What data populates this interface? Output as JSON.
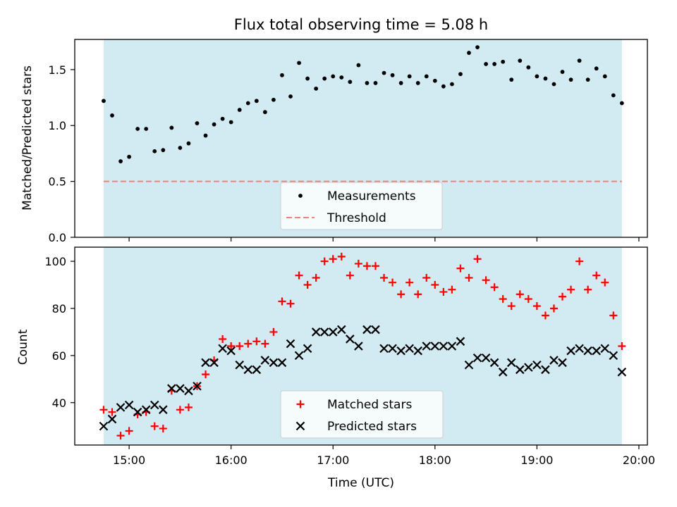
{
  "chart_data": [
    {
      "type": "scatter",
      "title": "Flux total observing time = 5.08 h",
      "ylabel": "Matched/Predicted stars",
      "ylim": [
        0,
        1.77
      ],
      "yticks": [
        "0.0",
        "0.5",
        "1.0",
        "1.5"
      ],
      "ytick_values": [
        0,
        0.5,
        1.0,
        1.5
      ],
      "shaded_span": [
        "14:45",
        "19:50"
      ],
      "shade_color": "#add8e6",
      "legend_position": "lower center",
      "threshold": {
        "name": "Threshold",
        "y": 0.5,
        "color": "#f08080",
        "style": "dashed"
      },
      "series": [
        {
          "name": "Measurements",
          "marker": "dot",
          "color": "#000000",
          "points": [
            [
              "14:45",
              1.22
            ],
            [
              "14:50",
              1.09
            ],
            [
              "14:55",
              0.68
            ],
            [
              "15:00",
              0.72
            ],
            [
              "15:05",
              0.97
            ],
            [
              "15:10",
              0.97
            ],
            [
              "15:15",
              0.77
            ],
            [
              "15:20",
              0.78
            ],
            [
              "15:25",
              0.98
            ],
            [
              "15:30",
              0.8
            ],
            [
              "15:35",
              0.84
            ],
            [
              "15:40",
              1.02
            ],
            [
              "15:45",
              0.91
            ],
            [
              "15:50",
              1.01
            ],
            [
              "15:55",
              1.06
            ],
            [
              "16:00",
              1.03
            ],
            [
              "16:05",
              1.14
            ],
            [
              "16:10",
              1.2
            ],
            [
              "16:15",
              1.22
            ],
            [
              "16:20",
              1.12
            ],
            [
              "16:25",
              1.23
            ],
            [
              "16:30",
              1.45
            ],
            [
              "16:35",
              1.26
            ],
            [
              "16:40",
              1.56
            ],
            [
              "16:45",
              1.42
            ],
            [
              "16:50",
              1.33
            ],
            [
              "16:55",
              1.42
            ],
            [
              "17:00",
              1.44
            ],
            [
              "17:05",
              1.43
            ],
            [
              "17:10",
              1.39
            ],
            [
              "17:15",
              1.54
            ],
            [
              "17:20",
              1.38
            ],
            [
              "17:25",
              1.38
            ],
            [
              "17:30",
              1.47
            ],
            [
              "17:35",
              1.45
            ],
            [
              "17:40",
              1.38
            ],
            [
              "17:45",
              1.44
            ],
            [
              "17:50",
              1.38
            ],
            [
              "17:55",
              1.44
            ],
            [
              "18:00",
              1.4
            ],
            [
              "18:05",
              1.35
            ],
            [
              "18:10",
              1.37
            ],
            [
              "18:15",
              1.46
            ],
            [
              "18:20",
              1.65
            ],
            [
              "18:25",
              1.7
            ],
            [
              "18:30",
              1.55
            ],
            [
              "18:35",
              1.55
            ],
            [
              "18:40",
              1.57
            ],
            [
              "18:45",
              1.41
            ],
            [
              "18:50",
              1.58
            ],
            [
              "18:55",
              1.52
            ],
            [
              "19:00",
              1.44
            ],
            [
              "19:05",
              1.42
            ],
            [
              "19:10",
              1.37
            ],
            [
              "19:15",
              1.48
            ],
            [
              "19:20",
              1.41
            ],
            [
              "19:25",
              1.58
            ],
            [
              "19:30",
              1.41
            ],
            [
              "19:35",
              1.51
            ],
            [
              "19:40",
              1.44
            ],
            [
              "19:45",
              1.27
            ],
            [
              "19:50",
              1.2
            ]
          ]
        }
      ]
    },
    {
      "type": "scatter",
      "xlabel": "Time (UTC)",
      "ylabel": "Count",
      "xlim": [
        "14:28",
        "20:05"
      ],
      "ylim": [
        22,
        106
      ],
      "xticks": [
        "15:00",
        "16:00",
        "17:00",
        "18:00",
        "19:00",
        "20:00"
      ],
      "yticks": [
        "40",
        "60",
        "80",
        "100"
      ],
      "ytick_values": [
        40,
        60,
        80,
        100
      ],
      "shaded_span": [
        "14:45",
        "19:50"
      ],
      "shade_color": "#add8e6",
      "legend_position": "lower center",
      "series": [
        {
          "name": "Matched stars",
          "marker": "plus",
          "color": "#ff0000",
          "points": [
            [
              "14:45",
              37
            ],
            [
              "14:50",
              36
            ],
            [
              "14:55",
              26
            ],
            [
              "15:00",
              28
            ],
            [
              "15:05",
              35
            ],
            [
              "15:10",
              36
            ],
            [
              "15:15",
              30
            ],
            [
              "15:20",
              29
            ],
            [
              "15:25",
              45
            ],
            [
              "15:30",
              37
            ],
            [
              "15:35",
              38
            ],
            [
              "15:40",
              47
            ],
            [
              "15:45",
              52
            ],
            [
              "15:50",
              58
            ],
            [
              "15:55",
              67
            ],
            [
              "16:00",
              64
            ],
            [
              "16:05",
              64
            ],
            [
              "16:10",
              65
            ],
            [
              "16:15",
              66
            ],
            [
              "16:20",
              65
            ],
            [
              "16:25",
              70
            ],
            [
              "16:30",
              83
            ],
            [
              "16:35",
              82
            ],
            [
              "16:40",
              94
            ],
            [
              "16:45",
              90
            ],
            [
              "16:50",
              93
            ],
            [
              "16:55",
              100
            ],
            [
              "17:00",
              101
            ],
            [
              "17:05",
              102
            ],
            [
              "17:10",
              94
            ],
            [
              "17:15",
              99
            ],
            [
              "17:20",
              98
            ],
            [
              "17:25",
              98
            ],
            [
              "17:30",
              93
            ],
            [
              "17:35",
              91
            ],
            [
              "17:40",
              86
            ],
            [
              "17:45",
              91
            ],
            [
              "17:50",
              86
            ],
            [
              "17:55",
              93
            ],
            [
              "18:00",
              90
            ],
            [
              "18:05",
              87
            ],
            [
              "18:10",
              88
            ],
            [
              "18:15",
              97
            ],
            [
              "18:20",
              93
            ],
            [
              "18:25",
              101
            ],
            [
              "18:30",
              92
            ],
            [
              "18:35",
              89
            ],
            [
              "18:40",
              84
            ],
            [
              "18:45",
              81
            ],
            [
              "18:50",
              86
            ],
            [
              "18:55",
              84
            ],
            [
              "19:00",
              81
            ],
            [
              "19:05",
              77
            ],
            [
              "19:10",
              80
            ],
            [
              "19:15",
              85
            ],
            [
              "19:20",
              88
            ],
            [
              "19:25",
              100
            ],
            [
              "19:30",
              88
            ],
            [
              "19:35",
              94
            ],
            [
              "19:40",
              91
            ],
            [
              "19:45",
              77
            ],
            [
              "19:50",
              64
            ]
          ]
        },
        {
          "name": "Predicted stars",
          "marker": "x",
          "color": "#000000",
          "points": [
            [
              "14:45",
              30
            ],
            [
              "14:50",
              33
            ],
            [
              "14:55",
              38
            ],
            [
              "15:00",
              39
            ],
            [
              "15:05",
              36
            ],
            [
              "15:10",
              37
            ],
            [
              "15:15",
              39
            ],
            [
              "15:20",
              37
            ],
            [
              "15:25",
              46
            ],
            [
              "15:30",
              46
            ],
            [
              "15:35",
              45
            ],
            [
              "15:40",
              47
            ],
            [
              "15:45",
              57
            ],
            [
              "15:50",
              57
            ],
            [
              "15:55",
              63
            ],
            [
              "16:00",
              62
            ],
            [
              "16:05",
              56
            ],
            [
              "16:10",
              54
            ],
            [
              "16:15",
              54
            ],
            [
              "16:20",
              58
            ],
            [
              "16:25",
              57
            ],
            [
              "16:30",
              57
            ],
            [
              "16:35",
              65
            ],
            [
              "16:40",
              60
            ],
            [
              "16:45",
              63
            ],
            [
              "16:50",
              70
            ],
            [
              "16:55",
              70
            ],
            [
              "17:00",
              70
            ],
            [
              "17:05",
              71
            ],
            [
              "17:10",
              67
            ],
            [
              "17:15",
              64
            ],
            [
              "17:20",
              71
            ],
            [
              "17:25",
              71
            ],
            [
              "17:30",
              63
            ],
            [
              "17:35",
              63
            ],
            [
              "17:40",
              62
            ],
            [
              "17:45",
              63
            ],
            [
              "17:50",
              62
            ],
            [
              "17:55",
              64
            ],
            [
              "18:00",
              64
            ],
            [
              "18:05",
              64
            ],
            [
              "18:10",
              64
            ],
            [
              "18:15",
              66
            ],
            [
              "18:20",
              56
            ],
            [
              "18:25",
              59
            ],
            [
              "18:30",
              59
            ],
            [
              "18:35",
              57
            ],
            [
              "18:40",
              53
            ],
            [
              "18:45",
              57
            ],
            [
              "18:50",
              54
            ],
            [
              "18:55",
              55
            ],
            [
              "19:00",
              56
            ],
            [
              "19:05",
              54
            ],
            [
              "19:10",
              58
            ],
            [
              "19:15",
              57
            ],
            [
              "19:20",
              62
            ],
            [
              "19:25",
              63
            ],
            [
              "19:30",
              62
            ],
            [
              "19:35",
              62
            ],
            [
              "19:40",
              63
            ],
            [
              "19:45",
              60
            ],
            [
              "19:50",
              53
            ]
          ]
        }
      ]
    }
  ]
}
